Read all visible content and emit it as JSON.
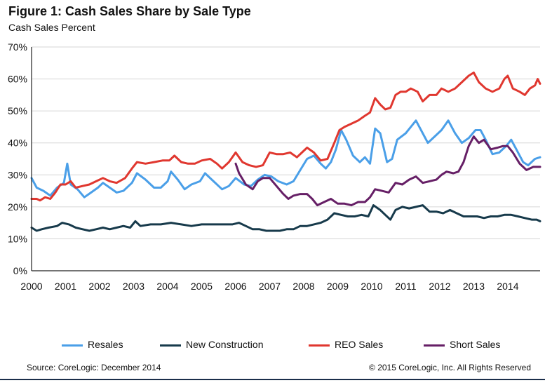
{
  "figure": {
    "title": "Figure 1: Cash Sales Share by Sale Type",
    "subtitle": "Cash Sales Percent"
  },
  "footer": {
    "source": "Source: CoreLogic: December 2014",
    "copyright": "© 2015 CoreLogic, Inc. All Rights Reserved"
  },
  "chart_data": {
    "type": "line",
    "title": "Figure 1: Cash Sales Share by Sale Type",
    "ylabel": "Cash Sales Percent",
    "xlabel": "",
    "x_range": [
      2000,
      2014.95
    ],
    "ylim": [
      0,
      70
    ],
    "y_ticks": [
      0,
      10,
      20,
      30,
      40,
      50,
      60,
      70
    ],
    "y_tick_labels": [
      "0%",
      "10%",
      "20%",
      "30%",
      "40%",
      "50%",
      "60%",
      "70%"
    ],
    "x_ticks": [
      2000,
      2001,
      2002,
      2003,
      2004,
      2005,
      2006,
      2007,
      2008,
      2009,
      2010,
      2011,
      2012,
      2013,
      2014
    ],
    "x_tick_labels": [
      "2000",
      "2001",
      "2002",
      "2003",
      "2004",
      "2005",
      "2006",
      "2007",
      "2008",
      "2009",
      "2010",
      "2011",
      "2012",
      "2013",
      "2014"
    ],
    "grid": true,
    "legend_position": "bottom",
    "series": [
      {
        "name": "Resales",
        "color": "#4a9fe8",
        "points": [
          [
            2000.0,
            29
          ],
          [
            2000.15,
            26
          ],
          [
            2000.35,
            25
          ],
          [
            2000.55,
            23.5
          ],
          [
            2000.75,
            26
          ],
          [
            2000.95,
            27.5
          ],
          [
            2001.05,
            33.5
          ],
          [
            2001.15,
            27
          ],
          [
            2001.35,
            25.5
          ],
          [
            2001.55,
            23
          ],
          [
            2001.75,
            24.5
          ],
          [
            2001.95,
            26
          ],
          [
            2002.1,
            27.5
          ],
          [
            2002.3,
            26
          ],
          [
            2002.5,
            24.5
          ],
          [
            2002.7,
            25
          ],
          [
            2002.95,
            27.5
          ],
          [
            2003.1,
            30.5
          ],
          [
            2003.35,
            28.5
          ],
          [
            2003.6,
            26
          ],
          [
            2003.8,
            26
          ],
          [
            2004.0,
            28
          ],
          [
            2004.1,
            31
          ],
          [
            2004.3,
            28.5
          ],
          [
            2004.5,
            25.5
          ],
          [
            2004.7,
            27
          ],
          [
            2004.95,
            28
          ],
          [
            2005.1,
            30.5
          ],
          [
            2005.35,
            28
          ],
          [
            2005.6,
            25.5
          ],
          [
            2005.8,
            26.5
          ],
          [
            2006.0,
            29
          ],
          [
            2006.25,
            27
          ],
          [
            2006.45,
            26.5
          ],
          [
            2006.65,
            28.5
          ],
          [
            2006.85,
            30
          ],
          [
            2007.05,
            29.5
          ],
          [
            2007.25,
            28
          ],
          [
            2007.5,
            27
          ],
          [
            2007.7,
            28
          ],
          [
            2007.9,
            31.5
          ],
          [
            2008.1,
            35
          ],
          [
            2008.3,
            36
          ],
          [
            2008.5,
            33.5
          ],
          [
            2008.65,
            32
          ],
          [
            2008.8,
            34
          ],
          [
            2008.95,
            38
          ],
          [
            2009.1,
            44
          ],
          [
            2009.25,
            41
          ],
          [
            2009.45,
            36
          ],
          [
            2009.65,
            34
          ],
          [
            2009.8,
            35.5
          ],
          [
            2009.95,
            33.5
          ],
          [
            2010.1,
            44.5
          ],
          [
            2010.25,
            43
          ],
          [
            2010.45,
            34
          ],
          [
            2010.6,
            35
          ],
          [
            2010.75,
            41
          ],
          [
            2011.0,
            43
          ],
          [
            2011.15,
            45
          ],
          [
            2011.3,
            47
          ],
          [
            2011.5,
            43
          ],
          [
            2011.65,
            40
          ],
          [
            2011.85,
            42
          ],
          [
            2012.05,
            44
          ],
          [
            2012.25,
            47
          ],
          [
            2012.45,
            43
          ],
          [
            2012.65,
            40
          ],
          [
            2012.85,
            41.5
          ],
          [
            2013.05,
            44
          ],
          [
            2013.2,
            44
          ],
          [
            2013.35,
            41
          ],
          [
            2013.55,
            36.5
          ],
          [
            2013.75,
            37
          ],
          [
            2013.95,
            39
          ],
          [
            2014.1,
            41
          ],
          [
            2014.25,
            38
          ],
          [
            2014.45,
            34
          ],
          [
            2014.6,
            33
          ],
          [
            2014.8,
            35
          ],
          [
            2014.95,
            35.5
          ]
        ]
      },
      {
        "name": "New Construction",
        "color": "#173a4b",
        "points": [
          [
            2000.0,
            13.5
          ],
          [
            2000.15,
            12.5
          ],
          [
            2000.3,
            13
          ],
          [
            2000.5,
            13.5
          ],
          [
            2000.75,
            14
          ],
          [
            2000.9,
            15
          ],
          [
            2001.1,
            14.5
          ],
          [
            2001.3,
            13.5
          ],
          [
            2001.5,
            13
          ],
          [
            2001.7,
            12.5
          ],
          [
            2001.9,
            13
          ],
          [
            2002.1,
            13.5
          ],
          [
            2002.3,
            13
          ],
          [
            2002.5,
            13.5
          ],
          [
            2002.7,
            14
          ],
          [
            2002.9,
            13.5
          ],
          [
            2003.05,
            15.5
          ],
          [
            2003.2,
            14
          ],
          [
            2003.5,
            14.5
          ],
          [
            2003.8,
            14.5
          ],
          [
            2004.1,
            15
          ],
          [
            2004.4,
            14.5
          ],
          [
            2004.7,
            14
          ],
          [
            2005.0,
            14.5
          ],
          [
            2005.3,
            14.5
          ],
          [
            2005.6,
            14.5
          ],
          [
            2005.9,
            14.5
          ],
          [
            2006.1,
            15
          ],
          [
            2006.3,
            14
          ],
          [
            2006.5,
            13
          ],
          [
            2006.7,
            13
          ],
          [
            2006.9,
            12.5
          ],
          [
            2007.1,
            12.5
          ],
          [
            2007.3,
            12.5
          ],
          [
            2007.5,
            13
          ],
          [
            2007.7,
            13
          ],
          [
            2007.9,
            14
          ],
          [
            2008.1,
            14
          ],
          [
            2008.3,
            14.5
          ],
          [
            2008.5,
            15
          ],
          [
            2008.7,
            16
          ],
          [
            2008.9,
            18
          ],
          [
            2009.1,
            17.5
          ],
          [
            2009.3,
            17
          ],
          [
            2009.5,
            17
          ],
          [
            2009.7,
            17.5
          ],
          [
            2009.9,
            17
          ],
          [
            2010.05,
            20.5
          ],
          [
            2010.25,
            19
          ],
          [
            2010.4,
            17.5
          ],
          [
            2010.55,
            16
          ],
          [
            2010.7,
            19
          ],
          [
            2010.9,
            20
          ],
          [
            2011.1,
            19.5
          ],
          [
            2011.3,
            20
          ],
          [
            2011.5,
            20.5
          ],
          [
            2011.7,
            18.5
          ],
          [
            2011.9,
            18.5
          ],
          [
            2012.1,
            18
          ],
          [
            2012.3,
            19
          ],
          [
            2012.5,
            18
          ],
          [
            2012.7,
            17
          ],
          [
            2012.9,
            17
          ],
          [
            2013.1,
            17
          ],
          [
            2013.3,
            16.5
          ],
          [
            2013.5,
            17
          ],
          [
            2013.7,
            17
          ],
          [
            2013.9,
            17.5
          ],
          [
            2014.1,
            17.5
          ],
          [
            2014.3,
            17
          ],
          [
            2014.5,
            16.5
          ],
          [
            2014.7,
            16
          ],
          [
            2014.85,
            16
          ],
          [
            2014.95,
            15.5
          ]
        ]
      },
      {
        "name": "REO Sales",
        "color": "#e0372f",
        "points": [
          [
            2000.0,
            22.5
          ],
          [
            2000.15,
            22.5
          ],
          [
            2000.25,
            22
          ],
          [
            2000.4,
            23
          ],
          [
            2000.55,
            22.5
          ],
          [
            2000.7,
            24.5
          ],
          [
            2000.85,
            27
          ],
          [
            2001.0,
            27
          ],
          [
            2001.15,
            28
          ],
          [
            2001.3,
            26
          ],
          [
            2001.5,
            26.5
          ],
          [
            2001.7,
            27
          ],
          [
            2001.9,
            28
          ],
          [
            2002.1,
            29
          ],
          [
            2002.3,
            28
          ],
          [
            2002.5,
            27.5
          ],
          [
            2002.75,
            29
          ],
          [
            2002.95,
            32
          ],
          [
            2003.1,
            34
          ],
          [
            2003.35,
            33.5
          ],
          [
            2003.6,
            34
          ],
          [
            2003.85,
            34.5
          ],
          [
            2004.05,
            34.5
          ],
          [
            2004.2,
            36
          ],
          [
            2004.4,
            34
          ],
          [
            2004.6,
            33.5
          ],
          [
            2004.8,
            33.5
          ],
          [
            2005.0,
            34.5
          ],
          [
            2005.25,
            35
          ],
          [
            2005.45,
            33.5
          ],
          [
            2005.6,
            32
          ],
          [
            2005.8,
            34
          ],
          [
            2006.0,
            37
          ],
          [
            2006.2,
            34
          ],
          [
            2006.4,
            33
          ],
          [
            2006.6,
            32.5
          ],
          [
            2006.8,
            33
          ],
          [
            2007.0,
            37
          ],
          [
            2007.2,
            36.5
          ],
          [
            2007.4,
            36.5
          ],
          [
            2007.6,
            37
          ],
          [
            2007.8,
            35.5
          ],
          [
            2007.95,
            37
          ],
          [
            2008.1,
            38.5
          ],
          [
            2008.3,
            37
          ],
          [
            2008.5,
            34.5
          ],
          [
            2008.7,
            35
          ],
          [
            2008.9,
            40
          ],
          [
            2009.05,
            44
          ],
          [
            2009.2,
            45
          ],
          [
            2009.4,
            46
          ],
          [
            2009.6,
            47
          ],
          [
            2009.8,
            48.5
          ],
          [
            2009.95,
            49.5
          ],
          [
            2010.1,
            54
          ],
          [
            2010.25,
            52
          ],
          [
            2010.4,
            50.5
          ],
          [
            2010.55,
            51
          ],
          [
            2010.7,
            55
          ],
          [
            2010.85,
            56
          ],
          [
            2011.0,
            56
          ],
          [
            2011.15,
            57
          ],
          [
            2011.35,
            56
          ],
          [
            2011.5,
            53
          ],
          [
            2011.7,
            55
          ],
          [
            2011.9,
            55
          ],
          [
            2012.05,
            57
          ],
          [
            2012.25,
            56
          ],
          [
            2012.45,
            57
          ],
          [
            2012.65,
            59
          ],
          [
            2012.85,
            61
          ],
          [
            2013.0,
            62
          ],
          [
            2013.15,
            59
          ],
          [
            2013.35,
            57
          ],
          [
            2013.55,
            56
          ],
          [
            2013.75,
            57
          ],
          [
            2013.9,
            60
          ],
          [
            2014.0,
            61
          ],
          [
            2014.15,
            57
          ],
          [
            2014.35,
            56
          ],
          [
            2014.5,
            55
          ],
          [
            2014.65,
            57
          ],
          [
            2014.8,
            58
          ],
          [
            2014.88,
            60
          ],
          [
            2014.95,
            58.5
          ]
        ]
      },
      {
        "name": "Short Sales",
        "color": "#661f66",
        "points": [
          [
            2006.0,
            33.5
          ],
          [
            2006.1,
            30.5
          ],
          [
            2006.3,
            27
          ],
          [
            2006.5,
            25.5
          ],
          [
            2006.65,
            28
          ],
          [
            2006.8,
            29
          ],
          [
            2007.0,
            29
          ],
          [
            2007.2,
            26.5
          ],
          [
            2007.4,
            24
          ],
          [
            2007.55,
            22.5
          ],
          [
            2007.7,
            23.5
          ],
          [
            2007.9,
            24
          ],
          [
            2008.1,
            24
          ],
          [
            2008.25,
            22.5
          ],
          [
            2008.4,
            20.5
          ],
          [
            2008.6,
            21.5
          ],
          [
            2008.8,
            22.5
          ],
          [
            2009.0,
            21
          ],
          [
            2009.2,
            21
          ],
          [
            2009.4,
            20.5
          ],
          [
            2009.6,
            21.5
          ],
          [
            2009.8,
            21.5
          ],
          [
            2009.95,
            23
          ],
          [
            2010.1,
            25.5
          ],
          [
            2010.3,
            25
          ],
          [
            2010.5,
            24.5
          ],
          [
            2010.7,
            27.5
          ],
          [
            2010.9,
            27
          ],
          [
            2011.1,
            28.5
          ],
          [
            2011.3,
            29.5
          ],
          [
            2011.5,
            27.5
          ],
          [
            2011.7,
            28
          ],
          [
            2011.9,
            28.5
          ],
          [
            2012.05,
            30
          ],
          [
            2012.2,
            31
          ],
          [
            2012.4,
            30.5
          ],
          [
            2012.55,
            31
          ],
          [
            2012.7,
            34
          ],
          [
            2012.85,
            39
          ],
          [
            2013.0,
            42
          ],
          [
            2013.15,
            40
          ],
          [
            2013.3,
            41
          ],
          [
            2013.5,
            38
          ],
          [
            2013.7,
            38.5
          ],
          [
            2013.85,
            39
          ],
          [
            2014.0,
            39
          ],
          [
            2014.15,
            37
          ],
          [
            2014.35,
            33.5
          ],
          [
            2014.55,
            31.5
          ],
          [
            2014.75,
            32.5
          ],
          [
            2014.95,
            32.5
          ]
        ]
      }
    ]
  }
}
